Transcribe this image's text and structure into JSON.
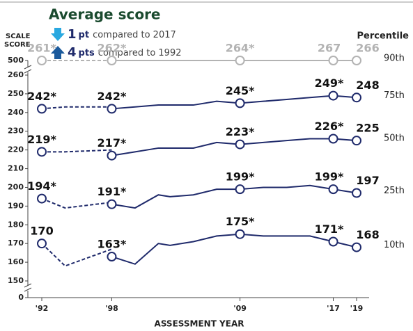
{
  "chart_data": {
    "type": "line",
    "title": "Average score",
    "changes": [
      {
        "amount": "1",
        "unit": "pt",
        "text": "compared to 2017",
        "direction": "down",
        "color": "#29a8e0"
      },
      {
        "amount": "4",
        "unit": "pts",
        "text": "compared to 1992",
        "direction": "up",
        "color": "#1b5a9c"
      }
    ],
    "y_label": [
      "SCALE",
      "SCORE"
    ],
    "x_label": "ASSESSMENT YEAR",
    "legend_title": "Percentile",
    "x_dashed": [
      1992,
      1994,
      1998
    ],
    "x": [
      1998,
      2000,
      2002,
      2003,
      2005,
      2007,
      2009,
      2011,
      2013,
      2015,
      2017,
      2019
    ],
    "xticks": [
      {
        "value": 1992,
        "label": "'92"
      },
      {
        "value": 1998,
        "label": "'98"
      },
      {
        "value": 2009,
        "label": "'09"
      },
      {
        "value": 2017,
        "label": "'17"
      },
      {
        "value": 2019,
        "label": "'19"
      }
    ],
    "yticks": [
      0,
      150,
      160,
      170,
      180,
      190,
      200,
      210,
      220,
      230,
      240,
      250,
      260,
      500
    ],
    "series": [
      {
        "name": "90th",
        "color": "#b3b3b3",
        "values_dashed": [
          261,
          263,
          262
        ],
        "value_labels_dashed": [
          "261*",
          null,
          null
        ],
        "values": [
          262,
          262,
          263,
          263,
          262,
          263,
          264,
          263,
          264,
          265,
          267,
          266
        ],
        "value_labels": [
          "262*",
          null,
          null,
          null,
          null,
          null,
          "264*",
          null,
          null,
          null,
          "267",
          "266"
        ]
      },
      {
        "name": "75th",
        "color": "#1f2a6b",
        "values_dashed": [
          242,
          243,
          243
        ],
        "value_labels_dashed": [
          "242*",
          null,
          null
        ],
        "values": [
          242,
          243,
          244,
          244,
          244,
          246,
          245,
          246,
          247,
          248,
          249,
          248
        ],
        "value_labels": [
          "242*",
          null,
          null,
          null,
          null,
          null,
          "245*",
          null,
          null,
          null,
          "249*",
          "248"
        ]
      },
      {
        "name": "50th",
        "color": "#1f2a6b",
        "values_dashed": [
          219,
          219,
          220
        ],
        "value_labels_dashed": [
          "219*",
          null,
          null
        ],
        "values": [
          217,
          219,
          221,
          221,
          221,
          224,
          223,
          224,
          225,
          226,
          226,
          225
        ],
        "value_labels": [
          "217*",
          null,
          null,
          null,
          null,
          null,
          "223*",
          null,
          null,
          null,
          "226*",
          "225"
        ]
      },
      {
        "name": "25th",
        "color": "#1f2a6b",
        "values_dashed": [
          194,
          189,
          192
        ],
        "value_labels_dashed": [
          "194*",
          null,
          null
        ],
        "values": [
          191,
          189,
          196,
          195,
          196,
          199,
          199,
          200,
          200,
          201,
          199,
          197
        ],
        "value_labels": [
          "191*",
          null,
          null,
          null,
          null,
          null,
          "199*",
          null,
          null,
          null,
          "199*",
          "197"
        ]
      },
      {
        "name": "10th",
        "color": "#1f2a6b",
        "values_dashed": [
          170,
          158,
          167
        ],
        "value_labels_dashed": [
          "170",
          null,
          null
        ],
        "values": [
          163,
          159,
          170,
          169,
          171,
          174,
          175,
          174,
          174,
          174,
          171,
          168
        ],
        "value_labels": [
          "163*",
          null,
          null,
          null,
          null,
          null,
          "175*",
          null,
          null,
          null,
          "171*",
          "168"
        ]
      }
    ]
  }
}
